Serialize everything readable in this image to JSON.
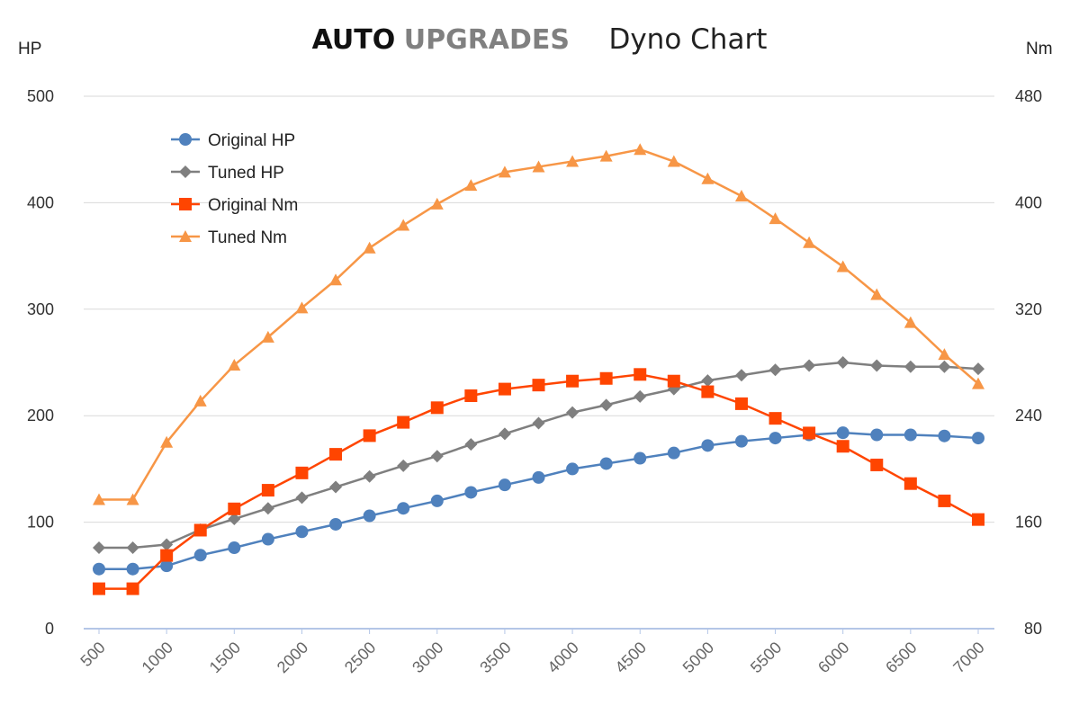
{
  "chart_data": {
    "type": "line",
    "title": {
      "brand_part1": "AUTO",
      "brand_part2": "UPGRADES",
      "text": "Dyno Chart"
    },
    "ylabel_left": "HP",
    "ylabel_right": "Nm",
    "ylim_left": [
      0,
      500
    ],
    "ylim_right": [
      80,
      480
    ],
    "yticks_left": [
      0,
      100,
      200,
      300,
      400,
      500
    ],
    "yticks_right": [
      80,
      160,
      240,
      320,
      400,
      480
    ],
    "xlim": [
      500,
      7000
    ],
    "xticks": [
      500,
      1000,
      1500,
      2000,
      2500,
      3000,
      3500,
      4000,
      4500,
      5000,
      5500,
      6000,
      6500,
      7000
    ],
    "grid": true,
    "legend_position": "top-left",
    "x": [
      500,
      750,
      1000,
      1250,
      1500,
      1750,
      2000,
      2250,
      2500,
      2750,
      3000,
      3250,
      3500,
      3750,
      4000,
      4250,
      4500,
      4750,
      5000,
      5250,
      5500,
      5750,
      6000,
      6250,
      6500,
      6750,
      7000
    ],
    "series": [
      {
        "name": "Original HP",
        "axis": "left",
        "color": "#4f81bd",
        "marker": "circle",
        "values": [
          56,
          56,
          59,
          69,
          76,
          84,
          91,
          98,
          106,
          113,
          120,
          128,
          135,
          142,
          150,
          155,
          160,
          165,
          172,
          176,
          179,
          182,
          184,
          182,
          182,
          181,
          179
        ]
      },
      {
        "name": "Tuned HP",
        "axis": "left",
        "color": "#7f7f7f",
        "marker": "diamond",
        "values": [
          76,
          76,
          79,
          93,
          103,
          113,
          123,
          133,
          143,
          153,
          162,
          173,
          183,
          193,
          203,
          210,
          218,
          225,
          233,
          238,
          243,
          247,
          250,
          247,
          246,
          246,
          244
        ]
      },
      {
        "name": "Original Nm",
        "axis": "right",
        "color": "#ff4500",
        "marker": "square",
        "values": [
          110,
          110,
          135,
          154,
          170,
          184,
          197,
          211,
          225,
          235,
          246,
          255,
          260,
          263,
          266,
          268,
          271,
          266,
          258,
          249,
          238,
          227,
          217,
          203,
          189,
          176,
          162
        ]
      },
      {
        "name": "Tuned Nm",
        "axis": "right",
        "color": "#f79646",
        "marker": "triangle",
        "values": [
          177,
          177,
          220,
          251,
          278,
          299,
          321,
          342,
          366,
          383,
          399,
          413,
          423,
          427,
          431,
          435,
          440,
          431,
          418,
          405,
          388,
          370,
          352,
          331,
          310,
          286,
          264
        ]
      }
    ]
  }
}
